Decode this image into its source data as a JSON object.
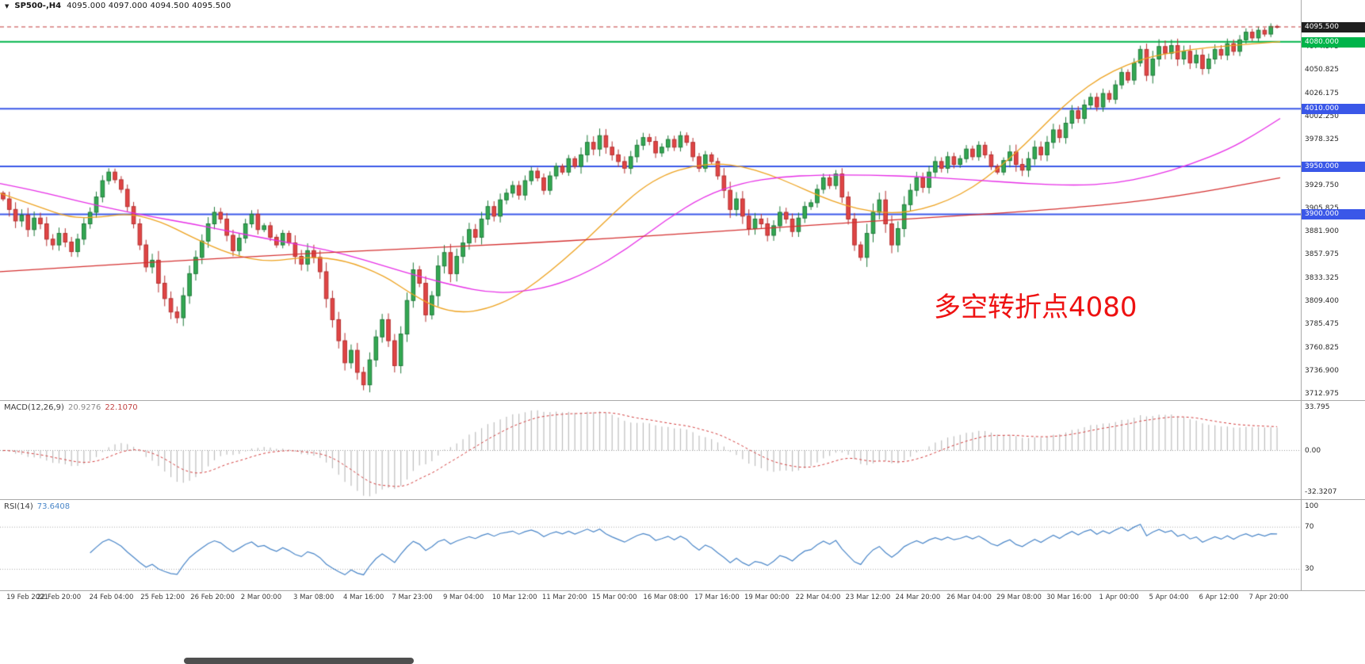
{
  "window": {
    "marker_icon": "▼",
    "title": "SP500-,H4",
    "ohlc": "4095.000 4097.000 4094.500 4095.500"
  },
  "annotation": {
    "text": "多空转折点4080",
    "color": "#ee1111"
  },
  "chart_data": {
    "type": "candlestick",
    "symbol": "SP500-",
    "timeframe": "H4",
    "ohlc_display": {
      "open": "4095.000",
      "high": "4097.000",
      "low": "4094.500",
      "close": "4095.500"
    },
    "main": {
      "ylim": [
        3706,
        4112
      ],
      "candle_up_color": "#33a852",
      "candle_up_border": "#1f7a3a",
      "candle_down_color": "#e04545",
      "candle_down_border": "#b43030",
      "closes": [
        3916,
        3905,
        3893,
        3899,
        3884,
        3896,
        3890,
        3874,
        3868,
        3880,
        3871,
        3861,
        3874,
        3890,
        3902,
        3918,
        3935,
        3944,
        3936,
        3926,
        3908,
        3890,
        3868,
        3845,
        3852,
        3828,
        3812,
        3798,
        3792,
        3815,
        3838,
        3855,
        3872,
        3890,
        3902,
        3895,
        3878,
        3862,
        3875,
        3890,
        3900,
        3884,
        3888,
        3876,
        3868,
        3880,
        3870,
        3856,
        3848,
        3862,
        3855,
        3840,
        3812,
        3790,
        3768,
        3745,
        3758,
        3735,
        3722,
        3748,
        3772,
        3790,
        3768,
        3742,
        3775,
        3810,
        3842,
        3828,
        3795,
        3815,
        3846,
        3860,
        3838,
        3856,
        3870,
        3884,
        3876,
        3895,
        3908,
        3898,
        3915,
        3922,
        3930,
        3920,
        3935,
        3945,
        3938,
        3925,
        3940,
        3950,
        3944,
        3958,
        3950,
        3962,
        3975,
        3968,
        3982,
        3970,
        3962,
        3955,
        3948,
        3960,
        3972,
        3980,
        3976,
        3964,
        3970,
        3978,
        3970,
        3982,
        3975,
        3960,
        3948,
        3962,
        3955,
        3940,
        3925,
        3905,
        3916,
        3898,
        3885,
        3895,
        3890,
        3878,
        3888,
        3902,
        3895,
        3882,
        3896,
        3908,
        3912,
        3926,
        3938,
        3930,
        3942,
        3918,
        3895,
        3868,
        3855,
        3880,
        3902,
        3915,
        3890,
        3868,
        3885,
        3910,
        3925,
        3938,
        3928,
        3944,
        3955,
        3948,
        3960,
        3952,
        3958,
        3968,
        3960,
        3972,
        3962,
        3950,
        3944,
        3956,
        3965,
        3952,
        3946,
        3958,
        3970,
        3962,
        3975,
        3988,
        3980,
        3995,
        4008,
        4000,
        4014,
        4022,
        4012,
        4026,
        4020,
        4035,
        4048,
        4040,
        4058,
        4072,
        4045,
        4062,
        4075,
        4068,
        4076,
        4062,
        4070,
        4058,
        4066,
        4052,
        4062,
        4072,
        4066,
        4078,
        4070,
        4082,
        4090,
        4084,
        4092,
        4088,
        4096,
        4095.5
      ],
      "axis_labels": [
        "4074.975",
        "4050.825",
        "4026.175",
        "4002.250",
        "3978.325",
        "3929.750",
        "3905.825",
        "3881.900",
        "3857.975",
        "3833.325",
        "3809.400",
        "3785.475",
        "3760.825",
        "3736.900",
        "3712.975"
      ],
      "hlines": [
        {
          "price": 4095.5,
          "color": "#c03a3a",
          "style": "dashed",
          "width": 1,
          "tag": "4095.500",
          "tag_bg": "#1f1f1f"
        },
        {
          "price": 4080.0,
          "color": "#00b44a",
          "style": "solid",
          "width": 2,
          "tag": "4080.000",
          "tag_bg": "#00b44a"
        },
        {
          "price": 4010.0,
          "color": "#3a57e8",
          "style": "solid",
          "width": 2,
          "tag": "4010.000",
          "tag_bg": "#3a57e8"
        },
        {
          "price": 3950.0,
          "color": "#3a57e8",
          "style": "solid",
          "width": 2,
          "tag": "3950.000",
          "tag_bg": "#3a57e8"
        },
        {
          "price": 3900.0,
          "color": "#3a57e8",
          "style": "solid",
          "width": 2,
          "tag": "3900.000",
          "tag_bg": "#3a57e8"
        }
      ],
      "ma_lines": [
        {
          "name": "ma-fast-orange",
          "color": "#eda21f",
          "points": [
            [
              0,
              3922
            ],
            [
              0.03,
              3908
            ],
            [
              0.055,
              3896
            ],
            [
              0.08,
              3897
            ],
            [
              0.1,
              3901
            ],
            [
              0.125,
              3893
            ],
            [
              0.15,
              3876
            ],
            [
              0.18,
              3858
            ],
            [
              0.21,
              3850
            ],
            [
              0.24,
              3856
            ],
            [
              0.27,
              3852
            ],
            [
              0.3,
              3836
            ],
            [
              0.32,
              3818
            ],
            [
              0.34,
              3803
            ],
            [
              0.36,
              3797
            ],
            [
              0.38,
              3801
            ],
            [
              0.4,
              3812
            ],
            [
              0.42,
              3830
            ],
            [
              0.44,
              3852
            ],
            [
              0.46,
              3876
            ],
            [
              0.48,
              3902
            ],
            [
              0.5,
              3926
            ],
            [
              0.52,
              3942
            ],
            [
              0.54,
              3950
            ],
            [
              0.56,
              3953
            ],
            [
              0.58,
              3950
            ],
            [
              0.6,
              3942
            ],
            [
              0.62,
              3931
            ],
            [
              0.64,
              3919
            ],
            [
              0.66,
              3909
            ],
            [
              0.68,
              3903
            ],
            [
              0.7,
              3901
            ],
            [
              0.72,
              3905
            ],
            [
              0.74,
              3914
            ],
            [
              0.76,
              3928
            ],
            [
              0.78,
              3948
            ],
            [
              0.8,
              3972
            ],
            [
              0.82,
              3999
            ],
            [
              0.84,
              4024
            ],
            [
              0.86,
              4043
            ],
            [
              0.88,
              4056
            ],
            [
              0.9,
              4065
            ],
            [
              0.93,
              4072
            ],
            [
              0.96,
              4076
            ],
            [
              1,
              4080
            ]
          ]
        },
        {
          "name": "ma-mid-magenta",
          "color": "#e62ee6",
          "points": [
            [
              0,
              3932
            ],
            [
              0.03,
              3924
            ],
            [
              0.06,
              3914
            ],
            [
              0.09,
              3905
            ],
            [
              0.12,
              3897
            ],
            [
              0.15,
              3890
            ],
            [
              0.18,
              3882
            ],
            [
              0.21,
              3874
            ],
            [
              0.24,
              3867
            ],
            [
              0.27,
              3858
            ],
            [
              0.3,
              3846
            ],
            [
              0.33,
              3834
            ],
            [
              0.36,
              3824
            ],
            [
              0.38,
              3819
            ],
            [
              0.4,
              3818
            ],
            [
              0.43,
              3824
            ],
            [
              0.46,
              3840
            ],
            [
              0.49,
              3864
            ],
            [
              0.52,
              3894
            ],
            [
              0.55,
              3919
            ],
            [
              0.58,
              3933
            ],
            [
              0.61,
              3939
            ],
            [
              0.64,
              3941
            ],
            [
              0.68,
              3941
            ],
            [
              0.72,
              3939
            ],
            [
              0.76,
              3936
            ],
            [
              0.8,
              3932
            ],
            [
              0.84,
              3930
            ],
            [
              0.87,
              3932
            ],
            [
              0.9,
              3940
            ],
            [
              0.93,
              3952
            ],
            [
              0.96,
              3968
            ],
            [
              0.98,
              3983
            ],
            [
              1,
              4000
            ]
          ]
        },
        {
          "name": "ma-slow-red",
          "color": "#d43030",
          "points": [
            [
              0,
              3840
            ],
            [
              0.08,
              3847
            ],
            [
              0.16,
              3853
            ],
            [
              0.24,
              3859
            ],
            [
              0.32,
              3864
            ],
            [
              0.4,
              3869
            ],
            [
              0.48,
              3875
            ],
            [
              0.56,
              3882
            ],
            [
              0.64,
              3889
            ],
            [
              0.72,
              3896
            ],
            [
              0.78,
              3901
            ],
            [
              0.84,
              3907
            ],
            [
              0.88,
              3912
            ],
            [
              0.92,
              3919
            ],
            [
              0.96,
              3928
            ],
            [
              1,
              3938
            ]
          ]
        }
      ]
    },
    "macd": {
      "label": "MACD(12,26,9)",
      "value_macd": "20.9276",
      "value_signal": "22.1070",
      "axis": [
        "33.795",
        "0.00",
        "-32.3207"
      ],
      "ylim": [
        -38,
        38
      ],
      "hist_color": "#bdbdbd",
      "signal_color": "#d23b3b",
      "params": {
        "fast": 12,
        "slow": 26,
        "signal": 9
      }
    },
    "rsi": {
      "label": "RSI(14)",
      "value": "73.6408",
      "axis": [
        "100",
        "70",
        "30"
      ],
      "levels": [
        70,
        30
      ],
      "ylim": [
        10,
        95
      ],
      "line_color": "#4a86c8",
      "period": 14
    },
    "time_axis": [
      {
        "t": "19 Feb 2021",
        "x": 0.005
      },
      {
        "t": "22 Feb 20:00",
        "x": 0.046
      },
      {
        "t": "24 Feb 04:00",
        "x": 0.087
      },
      {
        "t": "25 Feb 12:00",
        "x": 0.127
      },
      {
        "t": "26 Feb 20:00",
        "x": 0.166
      },
      {
        "t": "2 Mar 00:00",
        "x": 0.204
      },
      {
        "t": "3 Mar 08:00",
        "x": 0.245
      },
      {
        "t": "4 Mar 16:00",
        "x": 0.284
      },
      {
        "t": "7 Mar 23:00",
        "x": 0.322
      },
      {
        "t": "9 Mar 04:00",
        "x": 0.362
      },
      {
        "t": "10 Mar 12:00",
        "x": 0.402
      },
      {
        "t": "11 Mar 20:00",
        "x": 0.441
      },
      {
        "t": "15 Mar 00:00",
        "x": 0.48
      },
      {
        "t": "16 Mar 08:00",
        "x": 0.52
      },
      {
        "t": "17 Mar 16:00",
        "x": 0.56
      },
      {
        "t": "19 Mar 00:00",
        "x": 0.599
      },
      {
        "t": "22 Mar 04:00",
        "x": 0.639
      },
      {
        "t": "23 Mar 12:00",
        "x": 0.678
      },
      {
        "t": "24 Mar 20:00",
        "x": 0.717
      },
      {
        "t": "26 Mar 04:00",
        "x": 0.757
      },
      {
        "t": "29 Mar 08:00",
        "x": 0.796
      },
      {
        "t": "30 Mar 16:00",
        "x": 0.835
      },
      {
        "t": "1 Apr 00:00",
        "x": 0.874
      },
      {
        "t": "5 Apr 04:00",
        "x": 0.913
      },
      {
        "t": "6 Apr 12:00",
        "x": 0.952
      },
      {
        "t": "7 Apr 20:00",
        "x": 0.991
      }
    ]
  }
}
